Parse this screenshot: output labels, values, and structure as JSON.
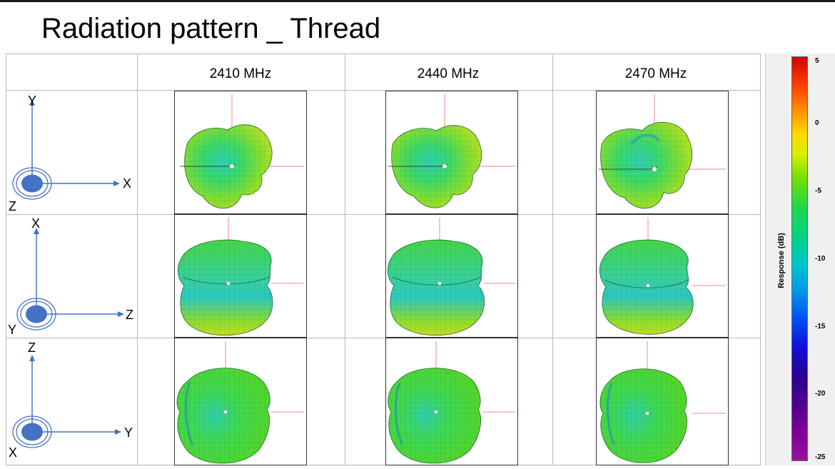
{
  "title": "Radiation pattern _ Thread",
  "frequencies": [
    "2410 MHz",
    "2440 MHz",
    "2470 MHz"
  ],
  "rows": [
    {
      "up_axis": "Y",
      "right_axis": "X",
      "out_axis": "Z",
      "pattern_view": "front"
    },
    {
      "up_axis": "X",
      "right_axis": "Z",
      "out_axis": "Y",
      "pattern_view": "side"
    },
    {
      "up_axis": "Z",
      "right_axis": "Y",
      "out_axis": "X",
      "pattern_view": "top"
    }
  ],
  "colorbar": {
    "label": "Response (dB)",
    "ticks": [
      "5",
      "0",
      "-5",
      "-10",
      "-15",
      "-20",
      "-25"
    ]
  },
  "colors": {
    "axis_arrow": "#4472c4",
    "axis_dot": "#4472c4",
    "grid": "#b8b8b8"
  }
}
